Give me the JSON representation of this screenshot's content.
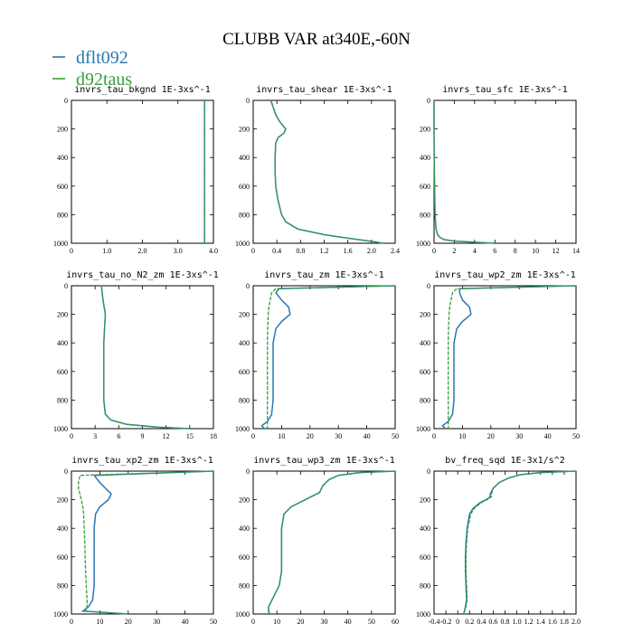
{
  "figure": {
    "title": "CLUBB VAR at340E,-60N",
    "legend": [
      {
        "label": "dflt092",
        "color": "#2878b4"
      },
      {
        "label": "d92taus",
        "color": "#3a9e3a"
      }
    ]
  },
  "chart_data": [
    {
      "type": "line",
      "title": "invrs_tau_bkgnd   1E-3xs^-1",
      "xlim": [
        0,
        4.0
      ],
      "ylim": [
        1000,
        0
      ],
      "xticks": [
        "0",
        "1.0",
        "2.0",
        "3.0",
        "4.0"
      ],
      "xtick_values": [
        0,
        1,
        2,
        3,
        4
      ],
      "yticks": [
        "0",
        "200",
        "400",
        "600",
        "800",
        "1000"
      ],
      "ytick_values": [
        0,
        200,
        400,
        600,
        800,
        1000
      ],
      "y": [
        0,
        50,
        100,
        200,
        300,
        400,
        500,
        600,
        700,
        800,
        900,
        950,
        1000
      ],
      "series": [
        {
          "name": "dflt092",
          "x": [
            3.75,
            3.75,
            3.75,
            3.75,
            3.75,
            3.75,
            3.75,
            3.75,
            3.75,
            3.75,
            3.75,
            3.75,
            3.75
          ]
        },
        {
          "name": "d92taus",
          "x": [
            3.75,
            3.75,
            3.75,
            3.75,
            3.75,
            3.75,
            3.75,
            3.75,
            3.75,
            3.75,
            3.75,
            3.75,
            3.75
          ]
        }
      ]
    },
    {
      "type": "line",
      "title": "invrs_tau_shear   1E-3xs^-1",
      "xlim": [
        0,
        2.4
      ],
      "ylim": [
        1000,
        0
      ],
      "xticks": [
        "0",
        "0.4",
        "0.8",
        "1.2",
        "1.6",
        "2.0",
        "2.4"
      ],
      "xtick_values": [
        0,
        0.4,
        0.8,
        1.2,
        1.6,
        2.0,
        2.4
      ],
      "yticks": [
        "0",
        "200",
        "400",
        "600",
        "800",
        "1000"
      ],
      "ytick_values": [
        0,
        200,
        400,
        600,
        800,
        1000
      ],
      "y": [
        0,
        50,
        100,
        150,
        200,
        230,
        260,
        300,
        400,
        500,
        600,
        700,
        800,
        850,
        900,
        940,
        970,
        990,
        1000
      ],
      "series": [
        {
          "name": "dflt092",
          "x": [
            0.3,
            0.34,
            0.38,
            0.45,
            0.55,
            0.52,
            0.42,
            0.38,
            0.37,
            0.37,
            0.38,
            0.42,
            0.48,
            0.55,
            0.75,
            1.2,
            1.7,
            2.05,
            2.2
          ]
        },
        {
          "name": "d92taus",
          "x": [
            0.3,
            0.34,
            0.38,
            0.45,
            0.55,
            0.52,
            0.42,
            0.38,
            0.37,
            0.37,
            0.38,
            0.42,
            0.48,
            0.55,
            0.75,
            1.2,
            1.7,
            2.05,
            2.2
          ]
        }
      ]
    },
    {
      "type": "line",
      "title": "invrs_tau_sfc   1E-3xs^-1",
      "xlim": [
        0,
        14
      ],
      "ylim": [
        1000,
        0
      ],
      "xticks": [
        "0",
        "2",
        "4",
        "6",
        "8",
        "10",
        "12",
        "14"
      ],
      "xtick_values": [
        0,
        2,
        4,
        6,
        8,
        10,
        12,
        14
      ],
      "yticks": [
        "0",
        "200",
        "400",
        "600",
        "800",
        "1000"
      ],
      "ytick_values": [
        0,
        200,
        400,
        600,
        800,
        1000
      ],
      "y": [
        0,
        200,
        400,
        600,
        800,
        900,
        940,
        960,
        975,
        985,
        993,
        1000
      ],
      "series": [
        {
          "name": "dflt092",
          "x": [
            0.0,
            0.0,
            0.02,
            0.05,
            0.1,
            0.2,
            0.35,
            0.6,
            1.0,
            2.0,
            4.0,
            6.0
          ]
        },
        {
          "name": "d92taus",
          "x": [
            0.0,
            0.0,
            0.02,
            0.05,
            0.1,
            0.2,
            0.35,
            0.6,
            1.0,
            2.0,
            4.0,
            6.0
          ]
        }
      ]
    },
    {
      "type": "line",
      "title": "invrs_tau_no_N2_zm   1E-3xs^-1",
      "xlim": [
        0,
        18
      ],
      "ylim": [
        1000,
        0
      ],
      "xticks": [
        "0",
        "3",
        "6",
        "9",
        "12",
        "15",
        "18"
      ],
      "xtick_values": [
        0,
        3,
        6,
        9,
        12,
        15,
        18
      ],
      "yticks": [
        "0",
        "200",
        "400",
        "600",
        "800",
        "1000"
      ],
      "ytick_values": [
        0,
        200,
        400,
        600,
        800,
        1000
      ],
      "y": [
        0,
        100,
        200,
        300,
        400,
        500,
        600,
        700,
        800,
        900,
        940,
        970,
        990,
        1000
      ],
      "series": [
        {
          "name": "dflt092",
          "x": [
            3.8,
            4.0,
            4.3,
            4.2,
            4.1,
            4.1,
            4.1,
            4.1,
            4.1,
            4.3,
            5.0,
            7.0,
            11.0,
            15.0
          ]
        },
        {
          "name": "d92taus",
          "x": [
            3.8,
            4.0,
            4.3,
            4.2,
            4.1,
            4.1,
            4.1,
            4.1,
            4.1,
            4.3,
            5.0,
            7.0,
            11.0,
            15.0
          ]
        }
      ]
    },
    {
      "type": "line",
      "title": "invrs_tau_zm   1E-3xs^-1",
      "xlim": [
        0,
        50
      ],
      "ylim": [
        1000,
        0
      ],
      "xticks": [
        "0",
        "10",
        "20",
        "30",
        "40",
        "50"
      ],
      "xtick_values": [
        0,
        10,
        20,
        30,
        40,
        50
      ],
      "yticks": [
        "0",
        "200",
        "400",
        "600",
        "800",
        "1000"
      ],
      "ytick_values": [
        0,
        200,
        400,
        600,
        800,
        1000
      ],
      "y": [
        0,
        20,
        50,
        100,
        150,
        200,
        250,
        300,
        400,
        500,
        600,
        700,
        800,
        900,
        950,
        980,
        1000
      ],
      "series": [
        {
          "name": "dflt092",
          "x": [
            50,
            9,
            8,
            10,
            12.5,
            13,
            10,
            8,
            7,
            7,
            7,
            7,
            7,
            6.5,
            5,
            3,
            4
          ]
        },
        {
          "name": "d92taus",
          "x": [
            50,
            8,
            6.5,
            6,
            5.5,
            5.3,
            5.2,
            5.1,
            5,
            5,
            5,
            5,
            5,
            5,
            5,
            5,
            5
          ]
        }
      ]
    },
    {
      "type": "line",
      "title": "invrs_tau_wp2_zm   1E-3xs^-1",
      "xlim": [
        0,
        50
      ],
      "ylim": [
        1000,
        0
      ],
      "xticks": [
        "0",
        "10",
        "20",
        "30",
        "40",
        "50"
      ],
      "xtick_values": [
        0,
        10,
        20,
        30,
        40,
        50
      ],
      "yticks": [
        "0",
        "200",
        "400",
        "600",
        "800",
        "1000"
      ],
      "ytick_values": [
        0,
        200,
        400,
        600,
        800,
        1000
      ],
      "y": [
        0,
        20,
        50,
        100,
        150,
        200,
        250,
        300,
        400,
        500,
        600,
        700,
        800,
        900,
        950,
        980,
        1000
      ],
      "series": [
        {
          "name": "dflt092",
          "x": [
            50,
            9,
            9,
            10,
            12.5,
            13,
            10,
            8,
            7,
            7,
            7,
            7,
            7,
            6.5,
            5,
            3,
            4
          ]
        },
        {
          "name": "d92taus",
          "x": [
            50,
            8,
            6.5,
            6,
            5.5,
            5.3,
            5.2,
            5.1,
            5,
            5,
            5,
            5,
            5,
            5,
            5,
            5,
            5
          ]
        }
      ]
    },
    {
      "type": "line",
      "title": "invrs_tau_xp2_zm   1E-3xs^-1",
      "xlim": [
        0,
        50
      ],
      "ylim": [
        1000,
        0
      ],
      "xticks": [
        "0",
        "10",
        "20",
        "30",
        "40",
        "50"
      ],
      "xtick_values": [
        0,
        10,
        20,
        30,
        40,
        50
      ],
      "yticks": [
        "0",
        "200",
        "400",
        "600",
        "800",
        "1000"
      ],
      "ytick_values": [
        0,
        200,
        400,
        600,
        800,
        1000
      ],
      "y": [
        0,
        30,
        80,
        120,
        160,
        200,
        250,
        300,
        400,
        500,
        600,
        700,
        800,
        900,
        950,
        980,
        1000
      ],
      "series": [
        {
          "name": "dflt092",
          "x": [
            50,
            8,
            10,
            12,
            14,
            13,
            10,
            8.5,
            8,
            8,
            8,
            8,
            8,
            7.5,
            6,
            4,
            20
          ]
        },
        {
          "name": "d92taus",
          "x": [
            50,
            3,
            2.5,
            2.5,
            3,
            3.5,
            4,
            4.3,
            4.5,
            4.7,
            4.8,
            5,
            5.2,
            5.5,
            5.5,
            5,
            20
          ]
        }
      ]
    },
    {
      "type": "line",
      "title": "invrs_tau_wp3_zm   1E-3xs^-1",
      "xlim": [
        0,
        60
      ],
      "ylim": [
        1000,
        0
      ],
      "xticks": [
        "0",
        "10",
        "20",
        "30",
        "40",
        "50",
        "60"
      ],
      "xtick_values": [
        0,
        10,
        20,
        30,
        40,
        50,
        60
      ],
      "yticks": [
        "0",
        "200",
        "400",
        "600",
        "800",
        "1000"
      ],
      "ytick_values": [
        0,
        200,
        400,
        600,
        800,
        1000
      ],
      "y": [
        0,
        10,
        30,
        60,
        100,
        150,
        200,
        250,
        300,
        400,
        500,
        600,
        700,
        800,
        900,
        950,
        980,
        1000
      ],
      "series": [
        {
          "name": "dflt092",
          "x": [
            60,
            45,
            36,
            32,
            29.5,
            28,
            22,
            16,
            13,
            12,
            12,
            12,
            12,
            11,
            8,
            6.5,
            6.5,
            7
          ]
        },
        {
          "name": "d92taus",
          "x": [
            60,
            45,
            36,
            32,
            29.5,
            28,
            22,
            16,
            13,
            12,
            12,
            12,
            12,
            11,
            8,
            6.5,
            6.5,
            7
          ]
        }
      ]
    },
    {
      "type": "line",
      "title": "bv_freq_sqd   1E-3x1/s^2",
      "xlim": [
        -0.4,
        2.0
      ],
      "ylim": [
        1000,
        0
      ],
      "xticks": [
        "-0.4",
        "-0.2",
        "0",
        "0.2",
        "0.4",
        "0.6",
        "0.8",
        "1.0",
        "1.2",
        "1.4",
        "1.6",
        "1.8",
        "2.0"
      ],
      "xtick_values": [
        -0.4,
        -0.2,
        0,
        0.2,
        0.4,
        0.6,
        0.8,
        1.0,
        1.2,
        1.4,
        1.6,
        1.8,
        2.0
      ],
      "yticks": [
        "0",
        "200",
        "400",
        "600",
        "800",
        "1000"
      ],
      "ytick_values": [
        0,
        200,
        400,
        600,
        800,
        1000
      ],
      "y": [
        0,
        10,
        25,
        50,
        80,
        120,
        160,
        180,
        200,
        220,
        260,
        300,
        400,
        500,
        600,
        700,
        800,
        900,
        950,
        1000
      ],
      "series": [
        {
          "name": "dflt092",
          "x": [
            2.0,
            1.4,
            1.05,
            0.85,
            0.7,
            0.6,
            0.55,
            0.55,
            0.48,
            0.38,
            0.26,
            0.2,
            0.16,
            0.14,
            0.13,
            0.13,
            0.14,
            0.15,
            0.13,
            0.1
          ]
        },
        {
          "name": "d92taus",
          "x": [
            2.0,
            1.4,
            1.05,
            0.85,
            0.7,
            0.6,
            0.57,
            0.57,
            0.5,
            0.4,
            0.28,
            0.22,
            0.17,
            0.15,
            0.14,
            0.14,
            0.15,
            0.16,
            0.14,
            0.1
          ]
        }
      ]
    }
  ]
}
